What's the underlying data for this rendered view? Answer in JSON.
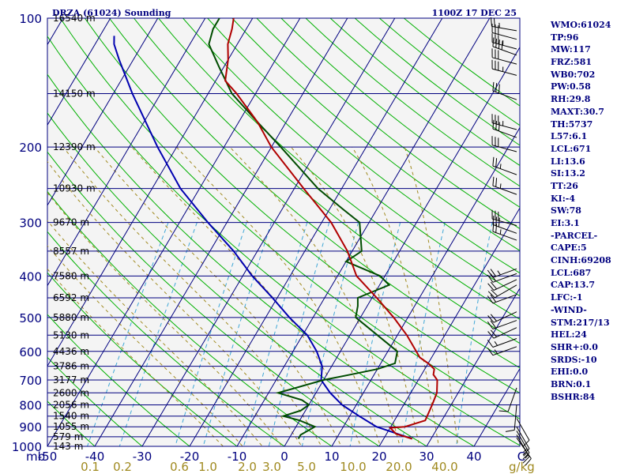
{
  "header": {
    "station_title": "DRZA (61024) Sounding",
    "valid_time": "1100Z 17 DEC 25"
  },
  "chart_data": {
    "type": "skew-t log-p diagram",
    "pressure_axis": {
      "unit_label": "mb",
      "ticks": [
        "100",
        "200",
        "300",
        "400",
        "500",
        "600",
        "700",
        "800",
        "900",
        "1000"
      ],
      "range": [
        100,
        1000
      ],
      "scale": "log"
    },
    "temperature_axis": {
      "unit": "°C",
      "ticks": [
        "-50",
        "-40",
        "-30",
        "-20",
        "-10",
        "0",
        "10",
        "20",
        "30",
        "40",
        "C"
      ],
      "range": [
        -50,
        50
      ]
    },
    "mixing_ratio_labels": {
      "unit": "g/kg",
      "ticks": [
        "0.1",
        "0.2",
        "0.6",
        "1.0",
        "2.0",
        "3.0",
        "5.0",
        "10.0",
        "20.0",
        "40.0"
      ]
    },
    "height_labels": [
      {
        "p": 100,
        "text": "16540 m"
      },
      {
        "p": 150,
        "text": "14150 m"
      },
      {
        "p": 200,
        "text": "12390 m"
      },
      {
        "p": 250,
        "text": "10930 m"
      },
      {
        "p": 300,
        "text": "9670 m"
      },
      {
        "p": 350,
        "text": "8557 m"
      },
      {
        "p": 400,
        "text": "7580 m"
      },
      {
        "p": 450,
        "text": "6592 m"
      },
      {
        "p": 500,
        "text": "5880 m"
      },
      {
        "p": 550,
        "text": "5130 m"
      },
      {
        "p": 600,
        "text": "4436 m"
      },
      {
        "p": 650,
        "text": "3786 m"
      },
      {
        "p": 700,
        "text": "3177 m"
      },
      {
        "p": 750,
        "text": "2600 m"
      },
      {
        "p": 800,
        "text": "2056 m"
      },
      {
        "p": 850,
        "text": "1540 m"
      },
      {
        "p": 900,
        "text": "1055 m"
      },
      {
        "p": 950,
        "text": "579 m"
      },
      {
        "p": 1000,
        "text": "143 m"
      }
    ],
    "temperature_profile": [
      [
        960,
        26
      ],
      [
        935,
        22
      ],
      [
        905,
        20
      ],
      [
        900,
        23
      ],
      [
        870,
        26.5
      ],
      [
        800,
        26
      ],
      [
        750,
        25.5
      ],
      [
        700,
        24
      ],
      [
        680,
        22.5
      ],
      [
        660,
        22
      ],
      [
        640,
        20
      ],
      [
        620,
        17.5
      ],
      [
        600,
        16
      ],
      [
        550,
        12
      ],
      [
        500,
        7
      ],
      [
        450,
        1
      ],
      [
        400,
        -6
      ],
      [
        350,
        -11
      ],
      [
        300,
        -18
      ],
      [
        250,
        -28
      ],
      [
        200,
        -40
      ],
      [
        175,
        -46
      ],
      [
        150,
        -54
      ],
      [
        140,
        -58
      ],
      [
        125,
        -60
      ],
      [
        115,
        -62
      ],
      [
        106,
        -63
      ],
      [
        100,
        -64
      ]
    ],
    "dewpoint_profile": [
      [
        960,
        2
      ],
      [
        940,
        2
      ],
      [
        900,
        4
      ],
      [
        870,
        0
      ],
      [
        850,
        -4
      ],
      [
        825,
        -1
      ],
      [
        800,
        0
      ],
      [
        780,
        -2
      ],
      [
        750,
        -8
      ],
      [
        700,
        0
      ],
      [
        680,
        5
      ],
      [
        660,
        10
      ],
      [
        640,
        13
      ],
      [
        600,
        12
      ],
      [
        500,
        -1
      ],
      [
        470,
        -2
      ],
      [
        450,
        -3
      ],
      [
        420,
        2
      ],
      [
        400,
        -1
      ],
      [
        370,
        -10
      ],
      [
        350,
        -8
      ],
      [
        300,
        -12
      ],
      [
        280,
        -17
      ],
      [
        250,
        -25
      ],
      [
        200,
        -38
      ],
      [
        175,
        -46
      ],
      [
        150,
        -55
      ],
      [
        130,
        -61
      ],
      [
        115,
        -66
      ],
      [
        106,
        -67
      ],
      [
        100,
        -67
      ]
    ],
    "parcel_profile": [
      [
        960,
        26
      ],
      [
        900,
        17
      ],
      [
        850,
        12
      ],
      [
        800,
        7
      ],
      [
        750,
        3
      ],
      [
        700,
        -0.5
      ],
      [
        650,
        -2
      ],
      [
        600,
        -5
      ],
      [
        550,
        -9
      ],
      [
        500,
        -15
      ],
      [
        450,
        -21
      ],
      [
        400,
        -28
      ],
      [
        350,
        -35
      ],
      [
        300,
        -44
      ],
      [
        250,
        -54
      ],
      [
        200,
        -64
      ],
      [
        150,
        -76
      ],
      [
        125,
        -83
      ],
      [
        115,
        -86
      ],
      [
        110,
        -87
      ]
    ],
    "wind_barbs": [
      {
        "p": 107,
        "dir": 280,
        "spd": 25
      },
      {
        "p": 112,
        "dir": 285,
        "spd": 30
      },
      {
        "p": 118,
        "dir": 285,
        "spd": 35
      },
      {
        "p": 122,
        "dir": 290,
        "spd": 40
      },
      {
        "p": 128,
        "dir": 285,
        "spd": 30
      },
      {
        "p": 136,
        "dir": 285,
        "spd": 35
      },
      {
        "p": 155,
        "dir": 290,
        "spd": 30
      },
      {
        "p": 182,
        "dir": 285,
        "spd": 35
      },
      {
        "p": 190,
        "dir": 290,
        "spd": 30
      },
      {
        "p": 205,
        "dir": 285,
        "spd": 30
      },
      {
        "p": 232,
        "dir": 290,
        "spd": 25
      },
      {
        "p": 258,
        "dir": 290,
        "spd": 25
      },
      {
        "p": 305,
        "dir": 285,
        "spd": 30
      },
      {
        "p": 318,
        "dir": 290,
        "spd": 30
      },
      {
        "p": 330,
        "dir": 290,
        "spd": 25
      },
      {
        "p": 385,
        "dir": 250,
        "spd": 25
      },
      {
        "p": 395,
        "dir": 250,
        "spd": 20
      },
      {
        "p": 408,
        "dir": 245,
        "spd": 20
      },
      {
        "p": 420,
        "dir": 240,
        "spd": 20
      },
      {
        "p": 442,
        "dir": 250,
        "spd": 20
      },
      {
        "p": 485,
        "dir": 245,
        "spd": 20
      },
      {
        "p": 508,
        "dir": 250,
        "spd": 20
      },
      {
        "p": 528,
        "dir": 245,
        "spd": 20
      },
      {
        "p": 560,
        "dir": 250,
        "spd": 15
      },
      {
        "p": 585,
        "dir": 250,
        "spd": 15
      },
      {
        "p": 730,
        "dir": 200,
        "spd": 10
      },
      {
        "p": 800,
        "dir": 185,
        "spd": 10
      },
      {
        "p": 860,
        "dir": 150,
        "spd": 10
      },
      {
        "p": 900,
        "dir": 150,
        "spd": 10
      },
      {
        "p": 920,
        "dir": 150,
        "spd": 15
      },
      {
        "p": 940,
        "dir": 150,
        "spd": 15
      },
      {
        "p": 955,
        "dir": 145,
        "spd": 15
      }
    ]
  },
  "indices": [
    "WMO:61024",
    "TP:96",
    "MW:117",
    "FRZ:581",
    "WB0:702",
    "PW:0.58",
    "RH:29.8",
    "MAXT:30.7",
    "TH:5737",
    "L57:6.1",
    "LCL:671",
    "LI:13.6",
    "SI:13.2",
    "TT:26",
    "KI:-4",
    "SW:78",
    "EI:3.1",
    "-PARCEL-",
    "CAPE:5",
    "CINH:69208",
    "LCL:687",
    "CAP:13.7",
    "LFC:-1",
    "-WIND-",
    "STM:217/13",
    "HEL:24",
    "SHR+:0.0",
    "SRDS:-10",
    "EHI:0.0",
    "BRN:0.1",
    "BSHR:84"
  ],
  "colors": {
    "isobar": "#00007f",
    "isotherm": "#00007f",
    "dry_adiabat": "#00b000",
    "moist_adiabat": "#a08a20",
    "mixing_ratio": "#3fa7d6",
    "temperature": "#b00000",
    "dewpoint": "#004c00",
    "parcel": "#0000b0",
    "wind_barb": "#000000",
    "axis_label": "#00007f",
    "mixing_ratio_label": "#a08a20"
  }
}
